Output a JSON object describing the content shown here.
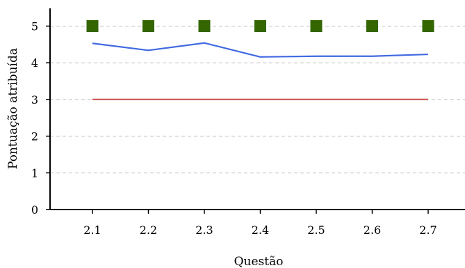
{
  "chart_data": {
    "type": "line",
    "title": "",
    "xlabel": "Questão",
    "ylabel": "Pontuação atribuída",
    "categories": [
      "2.1",
      "2.2",
      "2.3",
      "2.4",
      "2.5",
      "2.6",
      "2.7"
    ],
    "y_ticks": [
      "0",
      "1",
      "2",
      "3",
      "4",
      "5"
    ],
    "ylim": [
      0,
      5.5
    ],
    "grid": "horizontal dashed",
    "legend": "none",
    "series": [
      {
        "kind": "markers",
        "shape": "square",
        "color": "#336600",
        "values": [
          5,
          5,
          5,
          5,
          5,
          5,
          5
        ]
      },
      {
        "kind": "line",
        "color": "#4169e1",
        "values": [
          4.53,
          4.34,
          4.54,
          4.16,
          4.18,
          4.18,
          4.23
        ]
      },
      {
        "kind": "line",
        "color": "#cd5c5c",
        "values": [
          3,
          3,
          3,
          3,
          3,
          3,
          3
        ]
      }
    ]
  }
}
